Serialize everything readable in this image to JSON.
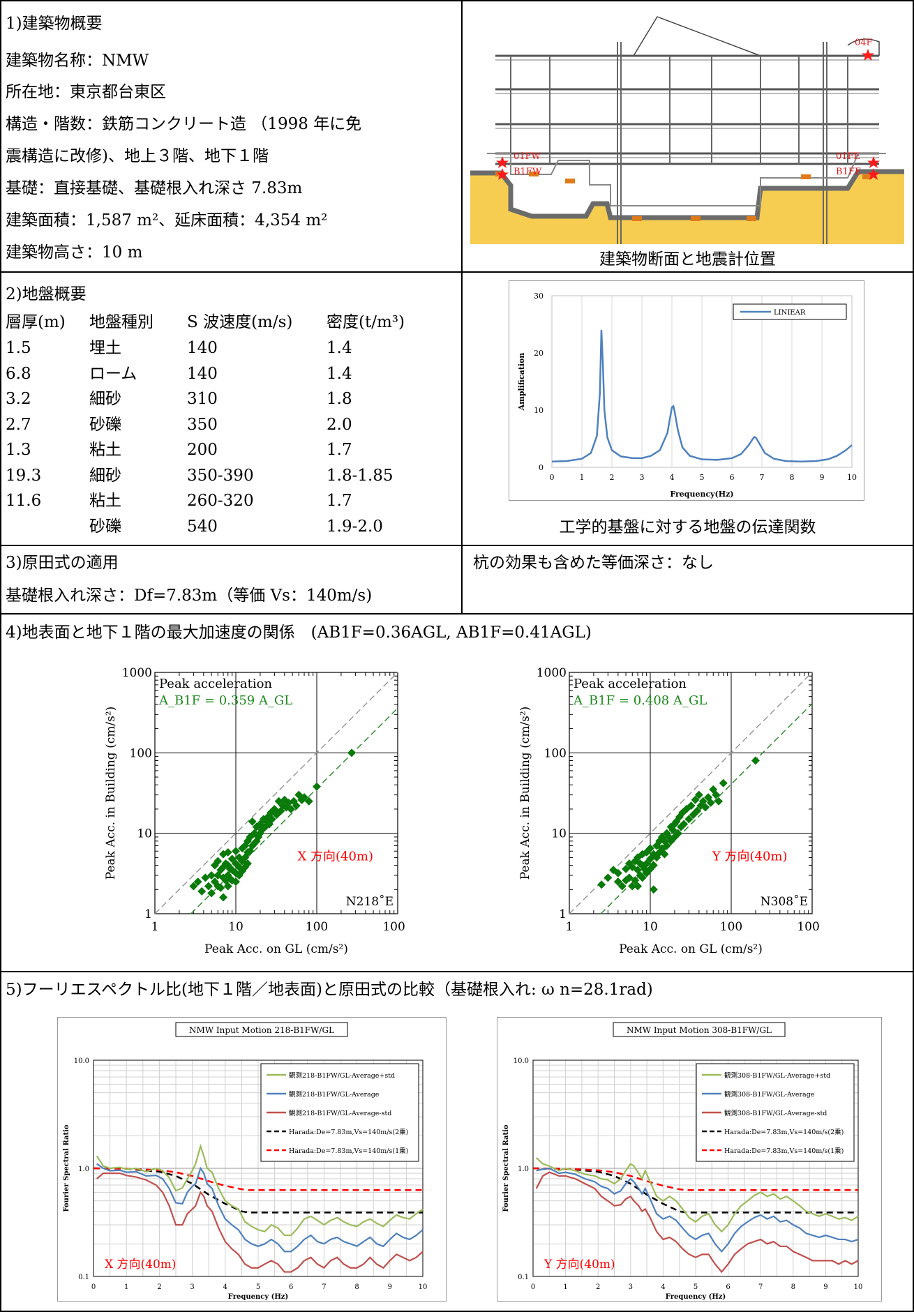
{
  "s1": {
    "heading": "1)建築物概要",
    "lines": [
      "建築物名称：NMW",
      "所在地：東京都台東区",
      "構造・階数：鉄筋コンクリート造 （1998 年に免",
      "震構造に改修)、地上３階、地下１階",
      "基礎：直接基礎、基礎根入れ深さ 7.83m",
      "建築面積：1,587 m²、延床面積：4,354 m²",
      "建築物高さ：10 m"
    ],
    "caption": "建築物断面と地震計位置",
    "sensors": [
      "04F",
      "01FW",
      "B1FW",
      "01FE",
      "B1FE"
    ]
  },
  "s2": {
    "heading": "2)地盤概要",
    "table_header": [
      "層厚(m)",
      "地盤種別",
      "S 波速度(m/s)",
      "密度(t/m³)"
    ],
    "rows": [
      [
        "1.5",
        "埋土",
        "140",
        "1.4"
      ],
      [
        "6.8",
        "ローム",
        "140",
        "1.4"
      ],
      [
        "3.2",
        "細砂",
        "310",
        "1.8"
      ],
      [
        "2.7",
        "砂礫",
        "350",
        "2.0"
      ],
      [
        "1.3",
        "粘土",
        "200",
        "1.7"
      ],
      [
        "19.3",
        "細砂",
        "350-390",
        "1.8-1.85"
      ],
      [
        "11.6",
        "粘土",
        "260-320",
        "1.7"
      ],
      [
        "",
        "砂礫",
        "540",
        "1.9-2.0"
      ]
    ],
    "caption": "工学的基盤に対する地盤の伝達関数"
  },
  "s3": {
    "heading": "3)原田式の適用",
    "line": "基礎根入れ深さ：Df=7.83m（等価 Vs：140m/s)",
    "right": "杭の効果も含めた等価深さ：なし"
  },
  "s4": {
    "heading": "4)地表面と地下１階の最大加速度の関係　(AB1F=0.36AGL, AB1F=0.41AGL)"
  },
  "s5": {
    "heading": "5)フーリエスペクトル比(地下１階／地表面)と原田式の比較（基礎根入れ: ω n=28.1rad)"
  },
  "chart_data": [
    {
      "type": "line",
      "xlabel": "Frequency(Hz)",
      "ylabel": "Amplification",
      "xlim": [
        0,
        10
      ],
      "ylim": [
        0,
        30
      ],
      "xticks": [
        "0",
        "1",
        "2",
        "3",
        "4",
        "5",
        "6",
        "7",
        "8",
        "9",
        "10"
      ],
      "yticks": [
        "0",
        "10",
        "20",
        "30"
      ],
      "grid": true,
      "legend": "top-right",
      "series": [
        {
          "name": "LINIEAR",
          "color": "#4f81bd",
          "x": [
            0,
            0.5,
            1.0,
            1.3,
            1.5,
            1.6,
            1.65,
            1.7,
            1.75,
            1.85,
            2.0,
            2.3,
            2.7,
            3.0,
            3.3,
            3.6,
            3.85,
            4.0,
            4.05,
            4.1,
            4.2,
            4.35,
            4.6,
            5.0,
            5.5,
            6.0,
            6.3,
            6.55,
            6.7,
            6.75,
            6.8,
            6.9,
            7.1,
            7.4,
            7.8,
            8.3,
            8.8,
            9.2,
            9.5,
            9.8,
            10.0
          ],
          "y": [
            1.0,
            1.1,
            1.5,
            2.5,
            5.5,
            13,
            24,
            18,
            10,
            5.2,
            3.0,
            1.9,
            1.6,
            1.6,
            2.0,
            3.0,
            6.0,
            10.5,
            10.7,
            9.5,
            6.5,
            3.5,
            2.0,
            1.4,
            1.3,
            1.6,
            2.3,
            3.8,
            5.0,
            5.3,
            5.2,
            4.3,
            2.5,
            1.5,
            1.1,
            1.0,
            1.1,
            1.4,
            2.0,
            3.0,
            3.9
          ]
        }
      ]
    },
    {
      "type": "scatter",
      "title": "Peak acceleration",
      "annotation": "A_B1F = 0.359 A_GL",
      "label": "X 方向(40m)",
      "corner": "N218˚E",
      "xlabel": "Peak Acc. on GL (cm/s²)",
      "ylabel": "Peak Acc. in Building (cm/s²)",
      "xlim": [
        1,
        1000
      ],
      "ylim": [
        1,
        1000
      ],
      "log": true,
      "ticks": [
        "1",
        "10",
        "100",
        "1000"
      ],
      "slope": 0.359,
      "x": [
        3,
        3.4,
        3.8,
        4.2,
        4.6,
        5,
        5,
        5.5,
        5.5,
        6,
        6,
        6,
        6.5,
        6.5,
        7,
        7,
        7,
        7,
        7.5,
        7.5,
        8,
        8,
        8,
        8,
        8.5,
        8.5,
        9,
        9,
        9,
        10,
        10,
        10,
        10,
        11,
        11,
        11,
        12,
        12,
        12,
        13,
        13,
        13,
        14,
        14,
        14,
        15,
        15,
        16,
        16,
        17,
        17,
        18,
        18,
        19,
        20,
        20,
        21,
        22,
        23,
        24,
        25,
        26,
        27,
        28,
        30,
        32,
        34,
        36,
        38,
        40,
        42,
        45,
        48,
        52,
        56,
        60,
        65,
        70,
        80,
        100,
        270
      ],
      "y": [
        2.2,
        2.5,
        1.9,
        2.8,
        2.2,
        3,
        1.8,
        4,
        2.5,
        4.5,
        3,
        2.2,
        3.5,
        2.1,
        5.5,
        3.8,
        2.8,
        1.6,
        4.2,
        2.6,
        5.8,
        4,
        3,
        2.2,
        3.6,
        2.7,
        4.8,
        3.5,
        2.6,
        6,
        4.2,
        3.2,
        2.5,
        5,
        3.8,
        3,
        6.5,
        4.5,
        3.4,
        7,
        5,
        3.8,
        8,
        5.8,
        4.2,
        9,
        6,
        14,
        7,
        10,
        7.5,
        12,
        8,
        9,
        13,
        10,
        11,
        15,
        12,
        14,
        16,
        13,
        18,
        15,
        20,
        17,
        25,
        19,
        22,
        26,
        21,
        24,
        20,
        25,
        22,
        30,
        26,
        28,
        25,
        38,
        100
      ]
    },
    {
      "type": "scatter",
      "title": "Peak acceleration",
      "annotation": "A_B1F = 0.408 A_GL",
      "label": "Y 方向(40m)",
      "corner": "N308˚E",
      "xlabel": "Peak Acc. on GL (cm/s²)",
      "ylabel": "Peak Acc. in Building (cm/s²)",
      "xlim": [
        1,
        1000
      ],
      "ylim": [
        1,
        1000
      ],
      "log": true,
      "ticks": [
        "1",
        "10",
        "100",
        "1000"
      ],
      "slope": 0.408,
      "x": [
        2.5,
        3,
        3.5,
        4,
        4,
        4.5,
        5,
        5,
        5.5,
        5.5,
        6,
        6,
        6.5,
        6.5,
        7,
        7,
        7,
        7.5,
        7.5,
        8,
        8,
        8,
        8.5,
        9,
        9,
        9,
        10,
        10,
        10,
        11,
        11,
        11,
        12,
        12,
        13,
        13,
        14,
        14,
        15,
        15,
        16,
        16,
        17,
        18,
        18,
        19,
        20,
        20,
        21,
        22,
        23,
        24,
        25,
        26,
        28,
        30,
        32,
        34,
        36,
        38,
        40,
        42,
        45,
        48,
        52,
        56,
        60,
        65,
        70,
        80,
        200
      ],
      "y": [
        2.3,
        2.8,
        3.5,
        2.5,
        3.2,
        2.2,
        3.6,
        2.6,
        4.2,
        2.8,
        3.8,
        2.2,
        4.5,
        2.6,
        5,
        3.5,
        2.2,
        4.2,
        3,
        5.5,
        4,
        2.8,
        3.6,
        5.8,
        4.2,
        3.2,
        6.5,
        4.8,
        3.6,
        5.5,
        4,
        2,
        7,
        5,
        8,
        5.8,
        9,
        6.5,
        8,
        5.5,
        10,
        7,
        9,
        12,
        8,
        11,
        13,
        9,
        14,
        10,
        16,
        12,
        18,
        13,
        20,
        15,
        22,
        17,
        26,
        19,
        30,
        22,
        25,
        21,
        28,
        24,
        35,
        30,
        25,
        42,
        80
      ]
    },
    {
      "type": "line",
      "title": "NMW Input Motion 218-B1FW/GL",
      "label": "X 方向(40m)",
      "xlabel": "Frequency (Hz)",
      "ylabel": "Fourier Spectral Ratio",
      "xlim": [
        0,
        10
      ],
      "ylim": [
        0.1,
        10
      ],
      "log_y": true,
      "xticks": [
        "0",
        "1",
        "2",
        "3",
        "4",
        "5",
        "6",
        "7",
        "8",
        "9",
        "10"
      ],
      "yticks": [
        "0.1",
        "1.0",
        "10.0"
      ],
      "legend": "top-right",
      "x": [
        0.1,
        0.3,
        0.5,
        0.8,
        1.0,
        1.3,
        1.6,
        1.9,
        2.1,
        2.3,
        2.5,
        2.7,
        2.85,
        3.0,
        3.1,
        3.25,
        3.35,
        3.45,
        3.6,
        3.8,
        4.0,
        4.2,
        4.4,
        4.6,
        4.8,
        5.0,
        5.2,
        5.4,
        5.6,
        5.8,
        6.0,
        6.2,
        6.4,
        6.6,
        6.8,
        7.0,
        7.2,
        7.4,
        7.6,
        7.8,
        8.0,
        8.2,
        8.4,
        8.6,
        8.8,
        9.0,
        9.2,
        9.4,
        9.6,
        9.8,
        10.0
      ],
      "series": [
        {
          "name": "観測218-B1FW/GL-Average+std",
          "color": "#9bbb59",
          "y": [
            1.3,
            1.05,
            1.0,
            1.02,
            0.98,
            1.0,
            0.93,
            1.0,
            0.95,
            0.82,
            0.62,
            0.66,
            0.8,
            0.95,
            1.1,
            1.6,
            1.3,
            1.0,
            0.92,
            0.65,
            0.5,
            0.45,
            0.42,
            0.32,
            0.29,
            0.27,
            0.26,
            0.3,
            0.28,
            0.24,
            0.24,
            0.28,
            0.34,
            0.36,
            0.33,
            0.3,
            0.33,
            0.35,
            0.32,
            0.3,
            0.29,
            0.32,
            0.34,
            0.31,
            0.29,
            0.33,
            0.37,
            0.35,
            0.34,
            0.38,
            0.42
          ]
        },
        {
          "name": "観測218-B1FW/GL-Average",
          "color": "#4f81bd",
          "y": [
            1.1,
            1.0,
            0.95,
            0.96,
            0.92,
            0.93,
            0.85,
            0.86,
            0.8,
            0.65,
            0.48,
            0.47,
            0.6,
            0.68,
            0.72,
            1.0,
            0.9,
            0.72,
            0.65,
            0.45,
            0.34,
            0.3,
            0.27,
            0.22,
            0.2,
            0.19,
            0.2,
            0.22,
            0.2,
            0.17,
            0.17,
            0.19,
            0.22,
            0.24,
            0.21,
            0.2,
            0.22,
            0.23,
            0.21,
            0.2,
            0.19,
            0.21,
            0.23,
            0.2,
            0.19,
            0.22,
            0.25,
            0.23,
            0.22,
            0.24,
            0.27
          ]
        },
        {
          "name": "観測218-B1FW/GL-Average-std",
          "color": "#c0504d",
          "y": [
            0.8,
            0.9,
            0.9,
            0.9,
            0.86,
            0.83,
            0.78,
            0.7,
            0.6,
            0.45,
            0.3,
            0.3,
            0.38,
            0.42,
            0.45,
            0.6,
            0.55,
            0.45,
            0.4,
            0.28,
            0.21,
            0.18,
            0.16,
            0.13,
            0.12,
            0.12,
            0.13,
            0.14,
            0.13,
            0.11,
            0.11,
            0.12,
            0.14,
            0.15,
            0.13,
            0.12,
            0.14,
            0.15,
            0.13,
            0.12,
            0.12,
            0.13,
            0.15,
            0.13,
            0.12,
            0.14,
            0.16,
            0.15,
            0.14,
            0.15,
            0.17
          ]
        }
      ],
      "harada": [
        {
          "name": "Harada:De=7.83m,Vs=140m/s(2乗)",
          "color": "#000000",
          "x": [
            0,
            1,
            2,
            2.5,
            3,
            3.5,
            4,
            4.5,
            4.7,
            10
          ],
          "y": [
            1.0,
            0.99,
            0.93,
            0.85,
            0.72,
            0.57,
            0.47,
            0.4,
            0.39,
            0.39
          ]
        },
        {
          "name": "Harada:De=7.83m,Vs=140m/s(1乗)",
          "color": "#ff0000",
          "x": [
            0,
            1,
            2,
            2.5,
            3,
            3.5,
            4,
            4.5,
            4.7,
            10
          ],
          "y": [
            1.0,
            0.99,
            0.96,
            0.92,
            0.85,
            0.76,
            0.69,
            0.64,
            0.63,
            0.63
          ]
        }
      ]
    },
    {
      "type": "line",
      "title": "NMW Input Motion 308-B1FW/GL",
      "label": "Y 方向(40m)",
      "xlabel": "Frequency (Hz)",
      "ylabel": "Fourier Spectral Ratio",
      "xlim": [
        0,
        10
      ],
      "ylim": [
        0.1,
        10
      ],
      "log_y": true,
      "xticks": [
        "0",
        "1",
        "2",
        "3",
        "4",
        "5",
        "6",
        "7",
        "8",
        "9",
        "10"
      ],
      "yticks": [
        "0.1",
        "1.0",
        "10.0"
      ],
      "legend": "top-right",
      "x": [
        0.1,
        0.3,
        0.5,
        0.8,
        1.0,
        1.3,
        1.6,
        1.9,
        2.1,
        2.3,
        2.5,
        2.7,
        2.85,
        3.0,
        3.1,
        3.25,
        3.35,
        3.45,
        3.6,
        3.8,
        4.0,
        4.2,
        4.4,
        4.6,
        4.8,
        5.0,
        5.2,
        5.4,
        5.6,
        5.8,
        6.0,
        6.2,
        6.4,
        6.6,
        6.8,
        7.0,
        7.2,
        7.4,
        7.6,
        7.8,
        8.0,
        8.2,
        8.4,
        8.6,
        8.8,
        9.0,
        9.2,
        9.4,
        9.6,
        9.8,
        10.0
      ],
      "series": [
        {
          "name": "観測308-B1FW/GL-Average+std",
          "color": "#9bbb59",
          "y": [
            1.25,
            1.1,
            1.05,
            0.95,
            1.0,
            0.95,
            0.88,
            0.85,
            0.8,
            0.78,
            0.72,
            0.8,
            0.95,
            1.1,
            1.05,
            0.9,
            0.8,
            0.95,
            0.75,
            0.55,
            0.5,
            0.55,
            0.5,
            0.42,
            0.35,
            0.32,
            0.36,
            0.38,
            0.3,
            0.26,
            0.3,
            0.38,
            0.45,
            0.5,
            0.56,
            0.6,
            0.55,
            0.58,
            0.52,
            0.55,
            0.5,
            0.45,
            0.4,
            0.38,
            0.36,
            0.38,
            0.36,
            0.34,
            0.35,
            0.33,
            0.36
          ]
        },
        {
          "name": "観測308-B1FW/GL-Average",
          "color": "#4f81bd",
          "y": [
            0.95,
            0.98,
            1.0,
            0.9,
            0.92,
            0.88,
            0.8,
            0.75,
            0.68,
            0.65,
            0.58,
            0.62,
            0.72,
            0.8,
            0.75,
            0.65,
            0.58,
            0.65,
            0.52,
            0.38,
            0.34,
            0.36,
            0.33,
            0.28,
            0.24,
            0.22,
            0.24,
            0.25,
            0.2,
            0.17,
            0.2,
            0.25,
            0.29,
            0.32,
            0.35,
            0.37,
            0.34,
            0.36,
            0.32,
            0.33,
            0.3,
            0.28,
            0.25,
            0.24,
            0.23,
            0.24,
            0.23,
            0.22,
            0.22,
            0.21,
            0.22
          ]
        },
        {
          "name": "観測308-B1FW/GL-Average-std",
          "color": "#c0504d",
          "y": [
            0.65,
            0.85,
            0.92,
            0.85,
            0.85,
            0.8,
            0.72,
            0.65,
            0.55,
            0.5,
            0.45,
            0.46,
            0.52,
            0.55,
            0.5,
            0.45,
            0.4,
            0.42,
            0.35,
            0.26,
            0.22,
            0.23,
            0.21,
            0.18,
            0.16,
            0.15,
            0.16,
            0.16,
            0.13,
            0.11,
            0.13,
            0.16,
            0.18,
            0.2,
            0.21,
            0.22,
            0.2,
            0.21,
            0.19,
            0.19,
            0.17,
            0.16,
            0.15,
            0.14,
            0.14,
            0.14,
            0.14,
            0.13,
            0.14,
            0.13,
            0.14
          ]
        }
      ],
      "harada": [
        {
          "name": "Harada:De=7.83m,Vs=140m/s(2乗)",
          "color": "#000000",
          "x": [
            0,
            1,
            2,
            2.5,
            3,
            3.5,
            4,
            4.5,
            4.7,
            10
          ],
          "y": [
            1.0,
            0.99,
            0.93,
            0.85,
            0.72,
            0.57,
            0.47,
            0.4,
            0.39,
            0.39
          ]
        },
        {
          "name": "Harada:De=7.83m,Vs=140m/s(1乗)",
          "color": "#ff0000",
          "x": [
            0,
            1,
            2,
            2.5,
            3,
            3.5,
            4,
            4.5,
            4.7,
            10
          ],
          "y": [
            1.0,
            0.99,
            0.96,
            0.92,
            0.85,
            0.76,
            0.69,
            0.64,
            0.63,
            0.63
          ]
        }
      ]
    }
  ]
}
